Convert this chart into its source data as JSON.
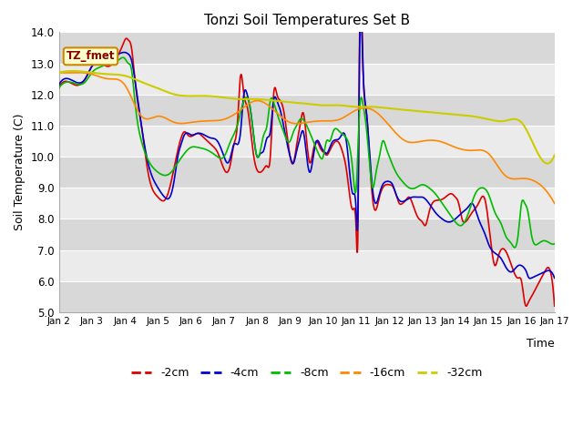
{
  "title": "Tonzi Soil Temperatures Set B",
  "xlabel": "Time",
  "ylabel": "Soil Temperature (C)",
  "ylim": [
    5.0,
    14.0
  ],
  "yticks": [
    5.0,
    6.0,
    7.0,
    8.0,
    9.0,
    10.0,
    11.0,
    12.0,
    13.0,
    14.0
  ],
  "x_labels": [
    "Jan 2",
    "Jan 3",
    "Jan 4",
    "Jan 5",
    "Jan 6",
    "Jan 7",
    "Jan 8",
    "Jan 9",
    "Jan 10",
    "Jan 11",
    "Jan 12",
    "Jan 13",
    "Jan 14",
    "Jan 15",
    "Jan 16",
    "Jan 17"
  ],
  "legend_label": "TZ_fmet",
  "background_color": "#ffffff",
  "plot_bg_dark": "#d8d8d8",
  "plot_bg_light": "#ebebeb",
  "series_colors": {
    "-2cm": "#dd0000",
    "-4cm": "#0000cc",
    "-8cm": "#00bb00",
    "-16cm": "#ff8800",
    "-32cm": "#cccc00"
  },
  "legend_box_color": "#ffffcc",
  "legend_box_edge": "#cc8800",
  "s2cm_x": [
    0.0,
    0.3,
    0.5,
    0.8,
    1.0,
    1.3,
    1.5,
    1.7,
    1.9,
    2.0,
    2.05,
    2.1,
    2.2,
    2.3,
    2.5,
    2.7,
    3.0,
    3.2,
    3.3,
    3.5,
    3.6,
    3.7,
    3.8,
    3.9,
    4.0,
    4.1,
    4.2,
    4.3,
    4.4,
    4.5,
    4.6,
    4.7,
    4.8,
    5.0,
    5.1,
    5.2,
    5.3,
    5.4,
    5.5,
    5.6,
    5.7,
    5.9,
    6.1,
    6.2,
    6.3,
    6.4,
    6.5,
    6.6,
    6.7,
    6.8,
    7.0,
    7.1,
    7.2,
    7.3,
    7.4,
    7.5,
    7.6,
    7.7,
    7.8,
    7.9,
    8.0,
    8.05,
    8.1,
    8.2,
    8.3,
    8.4,
    8.5,
    8.6,
    8.7,
    8.9,
    9.0,
    9.05,
    9.1,
    9.2,
    9.3,
    9.4,
    9.5,
    9.6,
    9.7,
    9.8,
    9.9,
    10.0,
    10.1,
    10.2,
    10.3,
    10.4,
    10.5,
    10.6,
    10.7,
    10.8,
    10.9,
    11.0,
    11.1,
    11.2,
    11.3,
    11.5,
    11.7,
    11.9,
    12.0,
    12.1,
    12.2,
    12.3,
    12.5,
    12.7,
    12.9,
    13.0,
    13.1,
    13.2,
    13.3,
    13.5,
    13.7,
    13.9,
    14.0,
    14.1,
    14.15,
    14.2,
    14.3,
    14.5,
    14.7,
    14.9,
    15.0
  ],
  "s2cm_y": [
    12.2,
    12.4,
    12.3,
    12.5,
    12.9,
    13.0,
    12.9,
    13.1,
    13.5,
    13.75,
    13.8,
    13.75,
    13.5,
    12.5,
    11.0,
    9.5,
    8.7,
    8.6,
    8.8,
    9.7,
    10.2,
    10.6,
    10.8,
    10.7,
    10.65,
    10.7,
    10.75,
    10.7,
    10.6,
    10.5,
    10.4,
    10.3,
    10.15,
    9.6,
    9.5,
    9.8,
    10.4,
    11.0,
    12.6,
    12.0,
    11.6,
    10.0,
    9.5,
    9.6,
    9.7,
    10.0,
    12.0,
    12.0,
    11.8,
    11.5,
    10.0,
    9.8,
    10.4,
    11.0,
    11.4,
    10.5,
    9.8,
    10.2,
    10.5,
    10.3,
    10.15,
    10.1,
    10.05,
    10.2,
    10.4,
    10.5,
    10.4,
    10.1,
    9.6,
    8.3,
    7.6,
    7.55,
    13.7,
    13.0,
    11.5,
    10.0,
    8.6,
    8.3,
    8.7,
    9.0,
    9.1,
    9.1,
    9.05,
    8.8,
    8.5,
    8.5,
    8.6,
    8.7,
    8.5,
    8.2,
    8.0,
    7.9,
    7.8,
    8.2,
    8.5,
    8.6,
    8.7,
    8.8,
    8.7,
    8.5,
    8.0,
    7.9,
    8.2,
    8.5,
    8.6,
    7.9,
    7.0,
    6.5,
    6.8,
    7.0,
    6.5,
    6.1,
    6.0,
    5.3,
    5.2,
    5.3,
    5.5,
    5.9,
    6.3,
    6.2,
    5.2
  ],
  "s4cm_x": [
    0.0,
    0.3,
    0.5,
    0.8,
    1.0,
    1.3,
    1.5,
    1.8,
    2.0,
    2.1,
    2.2,
    2.3,
    2.5,
    2.7,
    3.0,
    3.2,
    3.4,
    3.5,
    3.6,
    3.7,
    3.8,
    4.0,
    4.2,
    4.4,
    4.6,
    4.8,
    5.0,
    5.1,
    5.2,
    5.3,
    5.5,
    5.6,
    5.7,
    5.8,
    6.0,
    6.1,
    6.2,
    6.3,
    6.4,
    6.5,
    6.6,
    6.7,
    6.8,
    7.0,
    7.1,
    7.2,
    7.3,
    7.4,
    7.5,
    7.6,
    7.7,
    7.8,
    7.9,
    8.0,
    8.05,
    8.1,
    8.2,
    8.3,
    8.5,
    8.7,
    8.9,
    9.0,
    9.05,
    9.1,
    9.2,
    9.3,
    9.4,
    9.5,
    9.6,
    9.7,
    9.8,
    9.9,
    10.0,
    10.1,
    10.2,
    10.3,
    10.5,
    10.7,
    10.9,
    11.0,
    11.2,
    11.4,
    11.6,
    11.8,
    12.0,
    12.2,
    12.4,
    12.5,
    12.7,
    12.9,
    13.0,
    13.1,
    13.2,
    13.4,
    13.5,
    13.7,
    13.9,
    14.0,
    14.1,
    14.15,
    14.2,
    14.3,
    14.5,
    14.7,
    14.9,
    15.0
  ],
  "s4cm_y": [
    12.3,
    12.5,
    12.4,
    12.5,
    12.9,
    13.1,
    13.2,
    13.3,
    13.35,
    13.3,
    13.1,
    12.5,
    11.0,
    9.8,
    9.0,
    8.7,
    8.8,
    9.3,
    10.0,
    10.4,
    10.7,
    10.7,
    10.75,
    10.7,
    10.6,
    10.5,
    10.0,
    9.8,
    10.0,
    10.4,
    10.8,
    12.0,
    12.0,
    11.5,
    10.0,
    10.1,
    10.2,
    10.6,
    10.8,
    11.8,
    11.8,
    11.5,
    11.0,
    10.0,
    9.8,
    10.2,
    10.6,
    10.8,
    10.0,
    9.5,
    10.0,
    10.5,
    10.4,
    10.2,
    10.15,
    10.1,
    10.3,
    10.5,
    10.6,
    10.5,
    8.8,
    8.2,
    8.15,
    13.35,
    13.0,
    11.5,
    10.2,
    8.9,
    8.5,
    8.8,
    9.1,
    9.2,
    9.2,
    9.1,
    8.8,
    8.6,
    8.6,
    8.7,
    8.7,
    8.7,
    8.5,
    8.2,
    8.0,
    7.9,
    8.0,
    8.2,
    8.4,
    8.5,
    8.0,
    7.5,
    7.2,
    7.0,
    6.9,
    6.7,
    6.5,
    6.3,
    6.5,
    6.5,
    6.4,
    6.3,
    6.15,
    6.1,
    6.2,
    6.3,
    6.3,
    6.1
  ],
  "s8cm_x": [
    0.0,
    0.3,
    0.5,
    0.8,
    1.0,
    1.3,
    1.5,
    1.8,
    2.0,
    2.1,
    2.2,
    2.3,
    2.5,
    2.7,
    3.0,
    3.2,
    3.4,
    3.6,
    3.8,
    4.0,
    4.2,
    4.4,
    4.6,
    4.8,
    5.0,
    5.2,
    5.4,
    5.6,
    5.8,
    6.0,
    6.1,
    6.2,
    6.3,
    6.4,
    6.5,
    6.6,
    6.8,
    7.0,
    7.1,
    7.2,
    7.3,
    7.5,
    7.7,
    7.9,
    8.0,
    8.1,
    8.2,
    8.3,
    8.5,
    8.7,
    8.9,
    9.0,
    9.1,
    9.2,
    9.3,
    9.4,
    9.5,
    9.6,
    9.7,
    9.8,
    9.9,
    10.0,
    10.2,
    10.4,
    10.6,
    10.8,
    11.0,
    11.2,
    11.4,
    11.6,
    11.8,
    12.0,
    12.2,
    12.4,
    12.6,
    12.8,
    13.0,
    13.2,
    13.4,
    13.5,
    13.7,
    13.9,
    14.0,
    14.1,
    14.15,
    14.2,
    14.3,
    14.5,
    14.7,
    14.9,
    15.0
  ],
  "s8cm_y": [
    12.2,
    12.4,
    12.35,
    12.4,
    12.7,
    12.9,
    13.0,
    13.1,
    13.15,
    13.0,
    12.8,
    11.8,
    10.5,
    9.9,
    9.5,
    9.4,
    9.5,
    9.8,
    10.1,
    10.3,
    10.3,
    10.25,
    10.15,
    10.0,
    10.0,
    10.5,
    11.0,
    11.8,
    11.5,
    10.0,
    10.2,
    10.7,
    11.0,
    11.8,
    11.75,
    11.4,
    10.8,
    10.5,
    10.8,
    11.0,
    11.2,
    11.0,
    10.5,
    10.0,
    10.0,
    10.5,
    10.5,
    10.8,
    10.8,
    10.6,
    9.5,
    9.0,
    11.5,
    11.7,
    11.0,
    9.8,
    9.0,
    9.5,
    10.0,
    10.5,
    10.3,
    10.0,
    9.5,
    9.2,
    9.0,
    9.0,
    9.1,
    9.0,
    8.8,
    8.5,
    8.2,
    7.9,
    7.8,
    8.2,
    8.8,
    9.0,
    8.8,
    8.2,
    7.8,
    7.5,
    7.2,
    7.5,
    8.5,
    8.5,
    8.4,
    8.2,
    7.5,
    7.2,
    7.3,
    7.2,
    7.2
  ],
  "s16cm_x": [
    0.0,
    0.5,
    1.0,
    1.5,
    2.0,
    2.5,
    3.0,
    3.5,
    4.0,
    4.5,
    5.0,
    5.5,
    6.0,
    6.5,
    7.0,
    7.5,
    8.0,
    8.5,
    9.0,
    9.5,
    10.0,
    10.5,
    11.0,
    11.5,
    12.0,
    12.5,
    13.0,
    13.5,
    14.0,
    14.5,
    15.0
  ],
  "s16cm_y": [
    12.7,
    12.7,
    12.65,
    12.5,
    12.3,
    11.3,
    11.3,
    11.1,
    11.1,
    11.15,
    11.2,
    11.5,
    11.8,
    11.5,
    11.1,
    11.1,
    11.15,
    11.2,
    11.5,
    11.5,
    11.0,
    10.5,
    10.5,
    10.5,
    10.3,
    10.2,
    10.1,
    9.4,
    9.3,
    9.15,
    8.5
  ],
  "s32cm_x": [
    0.0,
    0.5,
    1.0,
    1.5,
    2.0,
    2.5,
    3.0,
    3.5,
    4.0,
    4.5,
    5.0,
    5.5,
    6.0,
    6.5,
    7.0,
    7.5,
    8.0,
    8.5,
    9.0,
    9.5,
    10.0,
    10.5,
    11.0,
    11.5,
    12.0,
    12.5,
    13.0,
    13.5,
    14.0,
    14.5,
    15.0
  ],
  "s32cm_y": [
    12.7,
    12.75,
    12.7,
    12.65,
    12.6,
    12.4,
    12.2,
    12.0,
    11.95,
    11.95,
    11.9,
    11.85,
    11.85,
    11.8,
    11.75,
    11.7,
    11.65,
    11.65,
    11.6,
    11.6,
    11.55,
    11.5,
    11.45,
    11.4,
    11.35,
    11.3,
    11.2,
    11.15,
    11.1,
    10.1,
    10.05
  ]
}
